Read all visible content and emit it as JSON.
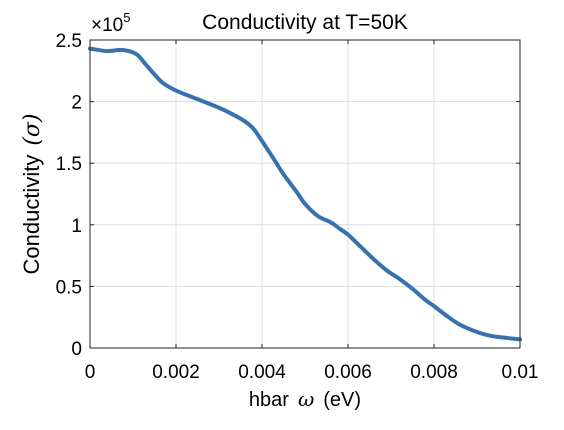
{
  "chart_data": {
    "type": "line",
    "title": "Conductivity at T=50K",
    "xlabel_prefix": "hbar",
    "xlabel_symbol": "ω",
    "xlabel_suffix": "(eV)",
    "ylabel_prefix": "Conductivity",
    "ylabel_symbol": "(σ)",
    "y_exponent_base": "×10",
    "y_exponent_power": "5",
    "xlim": [
      0,
      0.01
    ],
    "ylim": [
      0,
      250000
    ],
    "xticks": [
      0,
      0.002,
      0.004,
      0.006,
      0.008,
      0.01
    ],
    "xtick_labels": [
      "0",
      "0.002",
      "0.004",
      "0.006",
      "0.008",
      "0.01"
    ],
    "yticks": [
      0,
      50000,
      100000,
      150000,
      200000,
      250000
    ],
    "ytick_labels": [
      "0",
      "0.5",
      "1",
      "1.5",
      "2",
      "2.5"
    ],
    "grid": true,
    "series": [
      {
        "color": "#3572b5",
        "x": [
          0,
          0.0004,
          0.0007,
          0.0009,
          0.0011,
          0.0013,
          0.0015,
          0.0017,
          0.002,
          0.0025,
          0.003,
          0.0033,
          0.0036,
          0.0038,
          0.004,
          0.0043,
          0.0045,
          0.0048,
          0.005,
          0.0053,
          0.0056,
          0.0058,
          0.006,
          0.0063,
          0.0066,
          0.0069,
          0.0072,
          0.0075,
          0.0078,
          0.008,
          0.0083,
          0.0086,
          0.009,
          0.0093,
          0.0096,
          0.01
        ],
        "y": [
          243000,
          241000,
          242000,
          241000,
          238000,
          230000,
          222000,
          215000,
          209000,
          202000,
          195000,
          190000,
          184000,
          178000,
          168000,
          152000,
          141000,
          127000,
          117000,
          107000,
          102000,
          97000,
          92000,
          82000,
          72000,
          63000,
          56000,
          48000,
          39000,
          34000,
          26000,
          19000,
          13000,
          10000,
          8500,
          7000
        ]
      }
    ]
  }
}
